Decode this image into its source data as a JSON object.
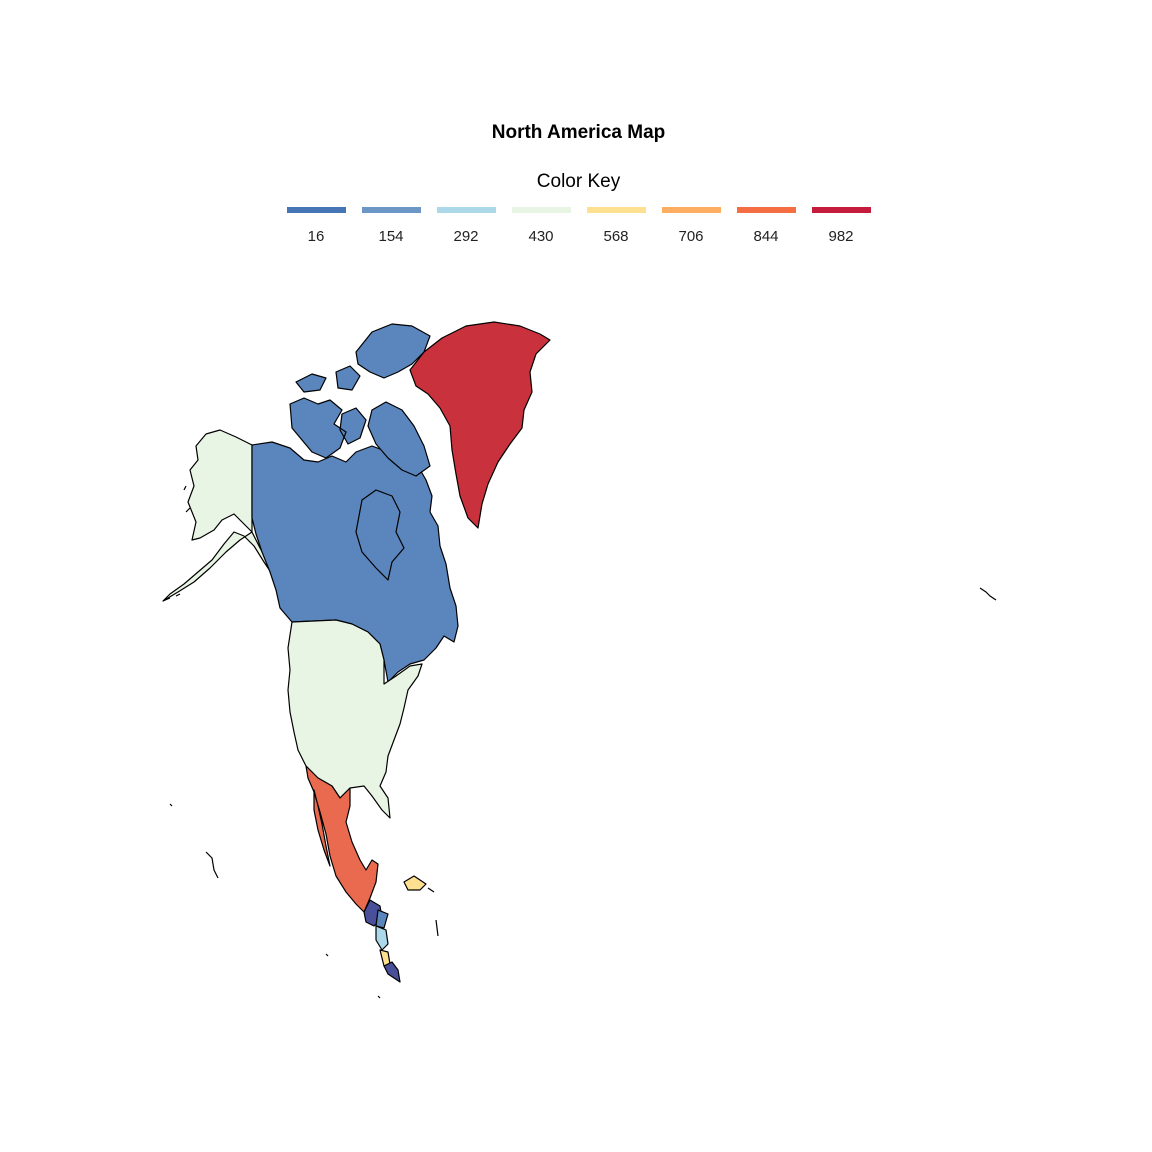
{
  "title": "North America Map",
  "legend": {
    "title": "Color Key",
    "items": [
      {
        "label": "16",
        "color": "#4575b4"
      },
      {
        "label": "154",
        "color": "#6b96c6"
      },
      {
        "label": "292",
        "color": "#abd9e9"
      },
      {
        "label": "430",
        "color": "#e9f5e4"
      },
      {
        "label": "568",
        "color": "#fee090"
      },
      {
        "label": "706",
        "color": "#fdae61"
      },
      {
        "label": "844",
        "color": "#f46d43"
      },
      {
        "label": "982",
        "color": "#c51b3d"
      }
    ]
  },
  "regions": [
    {
      "name": "Canada",
      "color": "#5b86bd"
    },
    {
      "name": "Greenland",
      "color": "#c9323c"
    },
    {
      "name": "Alaska / United States",
      "color": "#e9f5e4"
    },
    {
      "name": "Mexico",
      "color": "#ea6a4f"
    },
    {
      "name": "Guatemala",
      "color": "#4a4f9a"
    },
    {
      "name": "Honduras",
      "color": "#5b86bd"
    },
    {
      "name": "Nicaragua",
      "color": "#abd9e9"
    },
    {
      "name": "Costa Rica",
      "color": "#fee090"
    },
    {
      "name": "Panama",
      "color": "#4a4f9a"
    },
    {
      "name": "Cuba",
      "color": "#fee090"
    }
  ]
}
